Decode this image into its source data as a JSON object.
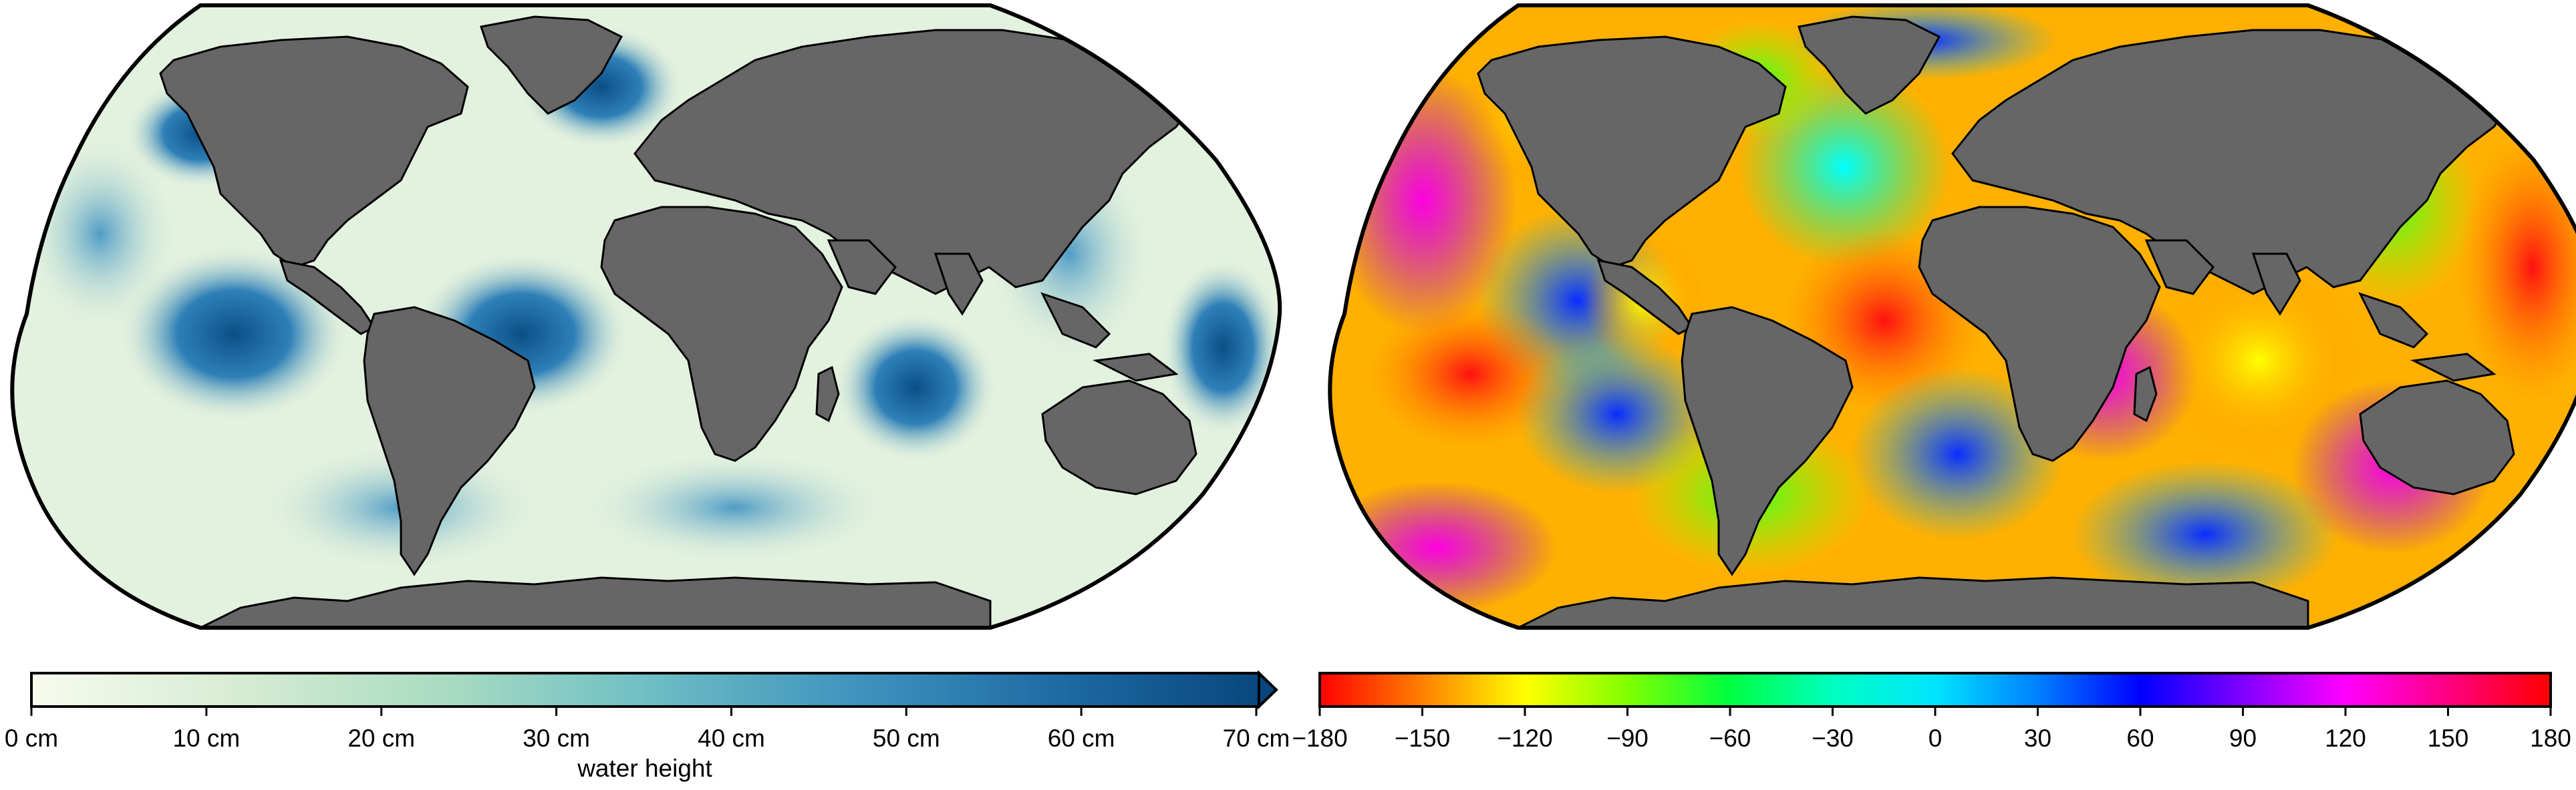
{
  "panels": [
    {
      "id": "amplitude",
      "colorbar": {
        "ticks": [
          "0 cm",
          "10 cm",
          "20 cm",
          "30 cm",
          "40 cm",
          "50 cm",
          "60 cm",
          "70 cm"
        ],
        "title": "water height",
        "range": [
          0,
          73
        ],
        "colors": [
          "#f7fbee",
          "#d6ecd2",
          "#a8dbc2",
          "#6fbfc4",
          "#3f94be",
          "#1d6aa4",
          "#08477d"
        ]
      }
    },
    {
      "id": "phase",
      "colorbar": {
        "ticks": [
          "−180",
          "−150",
          "−120",
          "−90",
          "−60",
          "−30",
          "0",
          "30",
          "60",
          "90",
          "120",
          "150",
          "180"
        ],
        "title": "",
        "range": [
          -180,
          180
        ],
        "colors": [
          "#ff0000",
          "#ff8000",
          "#ffff00",
          "#80ff00",
          "#00ff00",
          "#00ff80",
          "#00ffff",
          "#0080ff",
          "#0000ff",
          "#8000ff",
          "#ff00ff",
          "#ff0080",
          "#ff0000"
        ]
      }
    }
  ],
  "land_color": "#666666"
}
